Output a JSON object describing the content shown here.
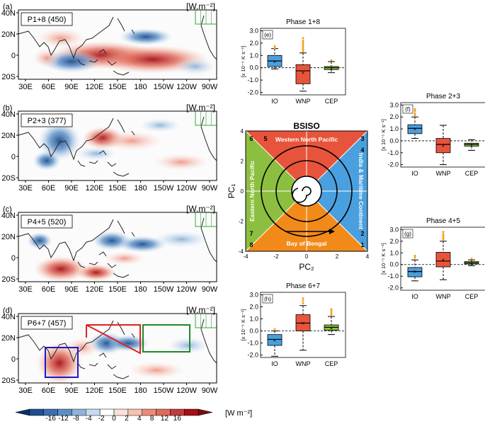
{
  "colors": {
    "blue_dark": "#1f4e8c",
    "blue_mid": "#4f86c1",
    "blue_light": "#a9c8e6",
    "red_dark": "#b2182b",
    "red_mid": "#e06a5a",
    "red_light": "#f6c1ae",
    "io_box": "#4aa0de",
    "wnp_box": "#e8543b",
    "cep_box": "#8cbf3f",
    "outlier": "#f5a020",
    "land_green": "#33aa33",
    "io_region": "#1a1acc",
    "wnp_region": "#dd2222",
    "cep_region": "#22882a"
  },
  "maps": {
    "lon_ticks": [
      "30E",
      "60E",
      "90E",
      "120E",
      "150E",
      "180",
      "150W",
      "120W",
      "90W"
    ],
    "lat_ticks": [
      "40N",
      "20N",
      "0",
      "20S"
    ],
    "units": "[W.m⁻²]",
    "panels": [
      {
        "id": "a",
        "letter": "(a)",
        "phase_label": "P1+8 (450)"
      },
      {
        "id": "b",
        "letter": "(b)",
        "phase_label": "P2+3 (377)"
      },
      {
        "id": "c",
        "letter": "(c)",
        "phase_label": "P4+5 (520)"
      },
      {
        "id": "d",
        "letter": "(d)",
        "phase_label": "P6+7 (457)"
      }
    ]
  },
  "colorbar": {
    "ticks": [
      "-16",
      "-12",
      "-8",
      "-4",
      "-2",
      "0",
      "2",
      "4",
      "8",
      "12",
      "16"
    ],
    "units": "[W m⁻²]"
  },
  "bsiso": {
    "title": "BSISO",
    "x_label": "PC₂",
    "y_label": "PC₁",
    "x_ticks": [
      "-4",
      "-2",
      "0",
      "2",
      "4"
    ],
    "y_ticks": [
      "4",
      "2",
      "0",
      "-2",
      "-4"
    ],
    "regions": {
      "top": "Western North Pacific",
      "bottom": "Bay of Bengal",
      "left": "Eastern North Pacific",
      "right": "India & Maritime Continent"
    },
    "phase_numbers": [
      "1",
      "2",
      "3",
      "4",
      "5",
      "6",
      "7",
      "8"
    ]
  },
  "chart_data": [
    {
      "type": "box",
      "letter": "(e)",
      "title": "Phase 1+8",
      "ylabel": "[x 10⁻⁵ K s⁻¹]",
      "ylim": [
        -2.2,
        3.2
      ],
      "yticks": [
        "-2.0",
        "-1.0",
        "0.0",
        "1.0",
        "2.0",
        "3.0"
      ],
      "categories": [
        "IO",
        "WNP",
        "CEP"
      ],
      "boxes": [
        {
          "min": -0.1,
          "q1": 0.1,
          "median": 0.55,
          "q3": 1.0,
          "max": 1.55,
          "mean": 0.5,
          "outliers": [
            1.6,
            1.75
          ]
        },
        {
          "min": -1.9,
          "q1": -1.3,
          "median": -0.25,
          "q3": 0.25,
          "max": 1.2,
          "mean": -0.4,
          "outliers": [
            1.3,
            1.45,
            1.6,
            1.75,
            1.9,
            2.05,
            2.2,
            2.4
          ]
        },
        {
          "min": -0.4,
          "q1": -0.15,
          "median": 0.0,
          "q3": 0.1,
          "max": 0.5,
          "mean": -0.05,
          "outliers": [
            0.6
          ]
        }
      ]
    },
    {
      "type": "box",
      "letter": "(f)",
      "title": "Phase 2+3",
      "ylabel": "[x 10⁻⁵ K s⁻¹]",
      "ylim": [
        -2.2,
        3.2
      ],
      "yticks": [
        "-2.0",
        "-1.0",
        "0.0",
        "1.0",
        "2.0",
        "3.0"
      ],
      "categories": [
        "IO",
        "WNP",
        "CEP"
      ],
      "boxes": [
        {
          "min": 0.2,
          "q1": 0.6,
          "median": 1.05,
          "q3": 1.35,
          "max": 2.0,
          "mean": 1.0,
          "outliers": [
            2.15,
            2.3,
            2.5,
            2.65
          ]
        },
        {
          "min": -2.0,
          "q1": -1.0,
          "median": -0.3,
          "q3": 0.2,
          "max": 1.3,
          "mean": -0.4,
          "outliers": []
        },
        {
          "min": -0.8,
          "q1": -0.45,
          "median": -0.3,
          "q3": -0.2,
          "max": 0.1,
          "mean": -0.35,
          "outliers": []
        }
      ]
    },
    {
      "type": "box",
      "letter": "(g)",
      "title": "Phase 4+5",
      "ylabel": "[x 10⁻⁵ K s⁻¹]",
      "ylim": [
        -2.2,
        3.2
      ],
      "yticks": [
        "-2.0",
        "-1.0",
        "0.0",
        "1.0",
        "2.0",
        "3.0"
      ],
      "categories": [
        "IO",
        "WNP",
        "CEP"
      ],
      "boxes": [
        {
          "min": -1.4,
          "q1": -1.05,
          "median": -0.6,
          "q3": -0.25,
          "max": 0.4,
          "mean": -0.6,
          "outliers": [
            0.6,
            0.75
          ]
        },
        {
          "min": -1.3,
          "q1": -0.2,
          "median": 0.3,
          "q3": 1.05,
          "max": 2.0,
          "mean": 0.4,
          "outliers": [
            2.15,
            2.3,
            2.45,
            2.6,
            2.8
          ]
        },
        {
          "min": -0.1,
          "q1": 0.05,
          "median": 0.15,
          "q3": 0.25,
          "max": 0.4,
          "mean": 0.1,
          "outliers": [
            0.5
          ]
        }
      ]
    },
    {
      "type": "box",
      "letter": "(h)",
      "title": "Phase 6+7",
      "ylabel": "[x 10⁻⁵ K s⁻¹]",
      "ylim": [
        -2.2,
        3.2
      ],
      "yticks": [
        "-2.0",
        "-1.0",
        "0.0",
        "1.0",
        "2.0",
        "3.0"
      ],
      "categories": [
        "IO",
        "WNP",
        "CEP"
      ],
      "boxes": [
        {
          "min": -2.1,
          "q1": -1.2,
          "median": -0.7,
          "q3": -0.3,
          "max": 0.0,
          "mean": -0.75,
          "outliers": [
            0.15
          ]
        },
        {
          "min": -1.6,
          "q1": 0.0,
          "median": 0.65,
          "q3": 1.35,
          "max": 2.1,
          "mean": 0.65,
          "outliers": [
            2.3,
            2.5,
            2.7
          ]
        },
        {
          "min": -0.3,
          "q1": 0.05,
          "median": 0.3,
          "q3": 0.5,
          "max": 1.2,
          "mean": 0.25,
          "outliers": [
            1.35,
            1.5,
            1.65,
            1.8
          ]
        }
      ]
    }
  ]
}
